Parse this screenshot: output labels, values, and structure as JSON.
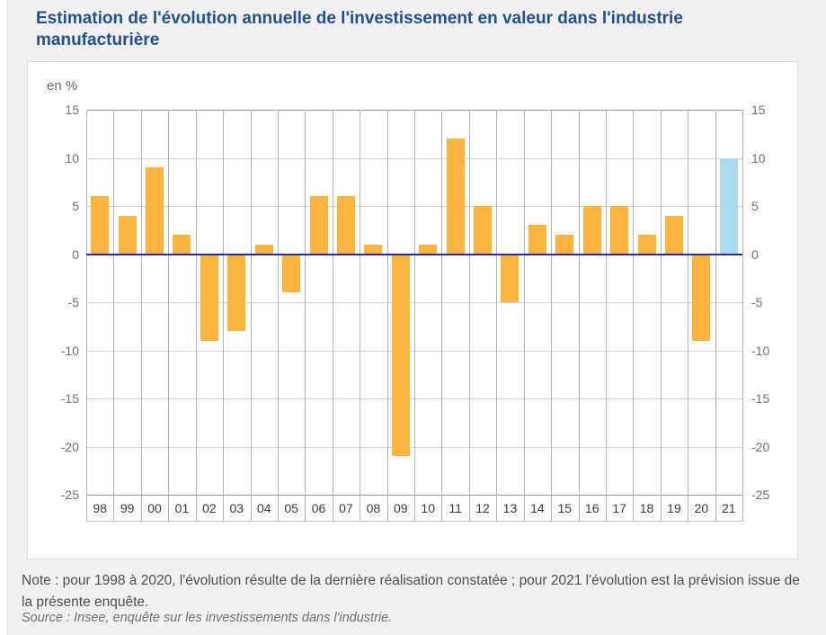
{
  "page": {
    "title": "Estimation de l'évolution annuelle de l'investissement en valeur dans l'industrie manufacturière",
    "note": "Note : pour 1998 à 2020, l'évolution résulte de la dernière réalisation constatée ; pour 2021 l'évolution est la prévision issue de la présente enquête.",
    "source": "Source : Insee, enquête sur les investissements dans l'industrie."
  },
  "colors": {
    "title_text": "#21518f",
    "bar": "#FBB440",
    "bar_forecast": "#A9DAEE",
    "zero_line": "#2B2BA1"
  },
  "chart_data": {
    "type": "bar",
    "title": "Estimation de l'évolution annuelle de l'investissement en valeur dans l'industrie manufacturière",
    "unit_label": "en %",
    "categories": [
      "98",
      "99",
      "00",
      "01",
      "02",
      "03",
      "04",
      "05",
      "06",
      "07",
      "08",
      "09",
      "10",
      "11",
      "12",
      "13",
      "14",
      "15",
      "16",
      "17",
      "18",
      "19",
      "20",
      "21"
    ],
    "values": [
      6,
      4,
      9,
      2,
      -9,
      -8,
      1,
      -4,
      6,
      6,
      1,
      -21,
      1,
      12,
      5,
      -5,
      3,
      2,
      5,
      5,
      2,
      4,
      -9,
      10
    ],
    "forecast_categories": [
      "21"
    ],
    "ylim": [
      -25,
      15
    ],
    "yticks": [
      15,
      10,
      5,
      0,
      -5,
      -10,
      -15,
      -20,
      -25
    ],
    "grid": true,
    "legend": null
  }
}
